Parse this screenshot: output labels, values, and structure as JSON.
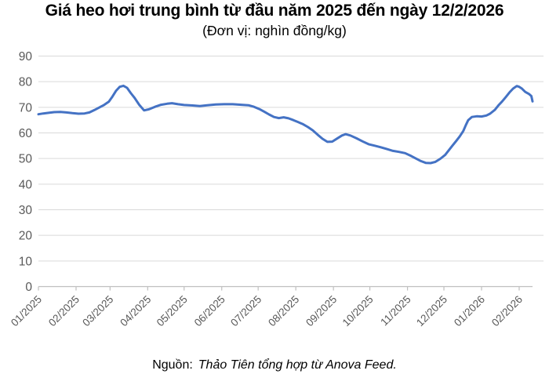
{
  "header": {
    "title": "Giá heo hơi trung bình từ đầu năm 2025 đến ngày 12/2/2026",
    "subtitle": "(Đơn vị: nghìn đồng/kg)"
  },
  "colors": {
    "line": "#4472C4",
    "grid": "#D9D9D9",
    "axis": "#BFBFBF",
    "tick_label": "#595959"
  },
  "footer": {
    "source_label": "Nguồn:",
    "source_text": "Thảo Tiên tổng hợp từ Anova Feed."
  },
  "chart_data": {
    "type": "line",
    "title": "Giá heo hơi trung bình từ đầu năm 2025 đến ngày 12/2/2026",
    "subtitle": "(Đơn vị: nghìn đồng/kg)",
    "unit": "nghìn đồng/kg",
    "xlabel": "",
    "ylabel": "",
    "ylim": [
      0,
      90
    ],
    "y_ticks": [
      0,
      10,
      20,
      30,
      40,
      50,
      60,
      70,
      80,
      90
    ],
    "grid": true,
    "legend_position": "none",
    "x_start_date": "2025-01-01",
    "x_end_date": "2026-02-12",
    "x_ticks": [
      {
        "label": "01/2025",
        "date": "2025-01-01"
      },
      {
        "label": "02/2025",
        "date": "2025-02-01"
      },
      {
        "label": "03/2025",
        "date": "2025-03-01"
      },
      {
        "label": "04/2025",
        "date": "2025-04-01"
      },
      {
        "label": "05/2025",
        "date": "2025-05-01"
      },
      {
        "label": "06/2025",
        "date": "2025-06-01"
      },
      {
        "label": "07/2025",
        "date": "2025-07-01"
      },
      {
        "label": "08/2025",
        "date": "2025-08-01"
      },
      {
        "label": "09/2025",
        "date": "2025-09-01"
      },
      {
        "label": "10/2025",
        "date": "2025-10-01"
      },
      {
        "label": "11/2025",
        "date": "2025-11-01"
      },
      {
        "label": "12/2025",
        "date": "2025-12-01"
      },
      {
        "label": "01/2026",
        "date": "2026-01-01"
      },
      {
        "label": "02/2026",
        "date": "2026-02-01"
      }
    ],
    "series": [
      {
        "name": "Giá heo hơi trung bình (nghìn đồng/kg)",
        "color": "#4472C4",
        "points": [
          [
            "2025-01-01",
            67.3
          ],
          [
            "2025-01-05",
            67.6
          ],
          [
            "2025-01-10",
            67.9
          ],
          [
            "2025-01-14",
            68.1
          ],
          [
            "2025-01-19",
            68.2
          ],
          [
            "2025-01-24",
            68.0
          ],
          [
            "2025-01-29",
            67.7
          ],
          [
            "2025-02-03",
            67.5
          ],
          [
            "2025-02-08",
            67.6
          ],
          [
            "2025-02-12",
            68.0
          ],
          [
            "2025-02-16",
            68.9
          ],
          [
            "2025-02-20",
            69.9
          ],
          [
            "2025-02-24",
            70.9
          ],
          [
            "2025-02-28",
            72.2
          ],
          [
            "2025-03-03",
            74.2
          ],
          [
            "2025-03-06",
            76.5
          ],
          [
            "2025-03-09",
            78.0
          ],
          [
            "2025-03-12",
            78.4
          ],
          [
            "2025-03-15",
            77.6
          ],
          [
            "2025-03-18",
            75.6
          ],
          [
            "2025-03-21",
            73.8
          ],
          [
            "2025-03-25",
            71.0
          ],
          [
            "2025-03-29",
            68.8
          ],
          [
            "2025-04-02",
            69.2
          ],
          [
            "2025-04-07",
            70.2
          ],
          [
            "2025-04-12",
            71.0
          ],
          [
            "2025-04-17",
            71.4
          ],
          [
            "2025-04-21",
            71.6
          ],
          [
            "2025-04-26",
            71.2
          ],
          [
            "2025-05-01",
            70.9
          ],
          [
            "2025-05-08",
            70.7
          ],
          [
            "2025-05-14",
            70.5
          ],
          [
            "2025-05-20",
            70.8
          ],
          [
            "2025-05-27",
            71.1
          ],
          [
            "2025-06-03",
            71.2
          ],
          [
            "2025-06-10",
            71.2
          ],
          [
            "2025-06-17",
            71.0
          ],
          [
            "2025-06-23",
            70.8
          ],
          [
            "2025-06-27",
            70.3
          ],
          [
            "2025-07-02",
            69.3
          ],
          [
            "2025-07-06",
            68.3
          ],
          [
            "2025-07-10",
            67.2
          ],
          [
            "2025-07-14",
            66.2
          ],
          [
            "2025-07-18",
            65.8
          ],
          [
            "2025-07-22",
            66.1
          ],
          [
            "2025-07-26",
            65.7
          ],
          [
            "2025-07-30",
            65.0
          ],
          [
            "2025-08-03",
            64.2
          ],
          [
            "2025-08-07",
            63.4
          ],
          [
            "2025-08-11",
            62.3
          ],
          [
            "2025-08-15",
            61.0
          ],
          [
            "2025-08-19",
            59.3
          ],
          [
            "2025-08-23",
            57.7
          ],
          [
            "2025-08-27",
            56.5
          ],
          [
            "2025-08-31",
            56.6
          ],
          [
            "2025-09-04",
            57.8
          ],
          [
            "2025-09-08",
            59.0
          ],
          [
            "2025-09-11",
            59.5
          ],
          [
            "2025-09-15",
            59.0
          ],
          [
            "2025-09-20",
            57.9
          ],
          [
            "2025-09-25",
            56.7
          ],
          [
            "2025-09-30",
            55.6
          ],
          [
            "2025-10-05",
            55.0
          ],
          [
            "2025-10-10",
            54.4
          ],
          [
            "2025-10-15",
            53.7
          ],
          [
            "2025-10-20",
            53.0
          ],
          [
            "2025-10-25",
            52.6
          ],
          [
            "2025-10-30",
            52.1
          ],
          [
            "2025-11-04",
            51.0
          ],
          [
            "2025-11-08",
            50.0
          ],
          [
            "2025-11-12",
            49.0
          ],
          [
            "2025-11-16",
            48.3
          ],
          [
            "2025-11-20",
            48.2
          ],
          [
            "2025-11-24",
            48.7
          ],
          [
            "2025-11-28",
            49.9
          ],
          [
            "2025-12-02",
            51.4
          ],
          [
            "2025-12-05",
            53.2
          ],
          [
            "2025-12-08",
            55.0
          ],
          [
            "2025-12-11",
            56.8
          ],
          [
            "2025-12-14",
            58.6
          ],
          [
            "2025-12-17",
            60.8
          ],
          [
            "2025-12-19",
            63.0
          ],
          [
            "2025-12-21",
            65.0
          ],
          [
            "2025-12-24",
            66.2
          ],
          [
            "2025-12-28",
            66.5
          ],
          [
            "2026-01-01",
            66.4
          ],
          [
            "2026-01-05",
            66.8
          ],
          [
            "2026-01-08",
            67.5
          ],
          [
            "2026-01-12",
            69.0
          ],
          [
            "2026-01-15",
            70.8
          ],
          [
            "2026-01-18",
            72.3
          ],
          [
            "2026-01-21",
            74.0
          ],
          [
            "2026-01-24",
            75.8
          ],
          [
            "2026-01-27",
            77.3
          ],
          [
            "2026-01-30",
            78.3
          ],
          [
            "2026-02-01",
            78.0
          ],
          [
            "2026-02-03",
            77.4
          ],
          [
            "2026-02-06",
            76.0
          ],
          [
            "2026-02-09",
            75.2
          ],
          [
            "2026-02-11",
            74.4
          ],
          [
            "2026-02-12",
            72.3
          ]
        ]
      }
    ]
  }
}
